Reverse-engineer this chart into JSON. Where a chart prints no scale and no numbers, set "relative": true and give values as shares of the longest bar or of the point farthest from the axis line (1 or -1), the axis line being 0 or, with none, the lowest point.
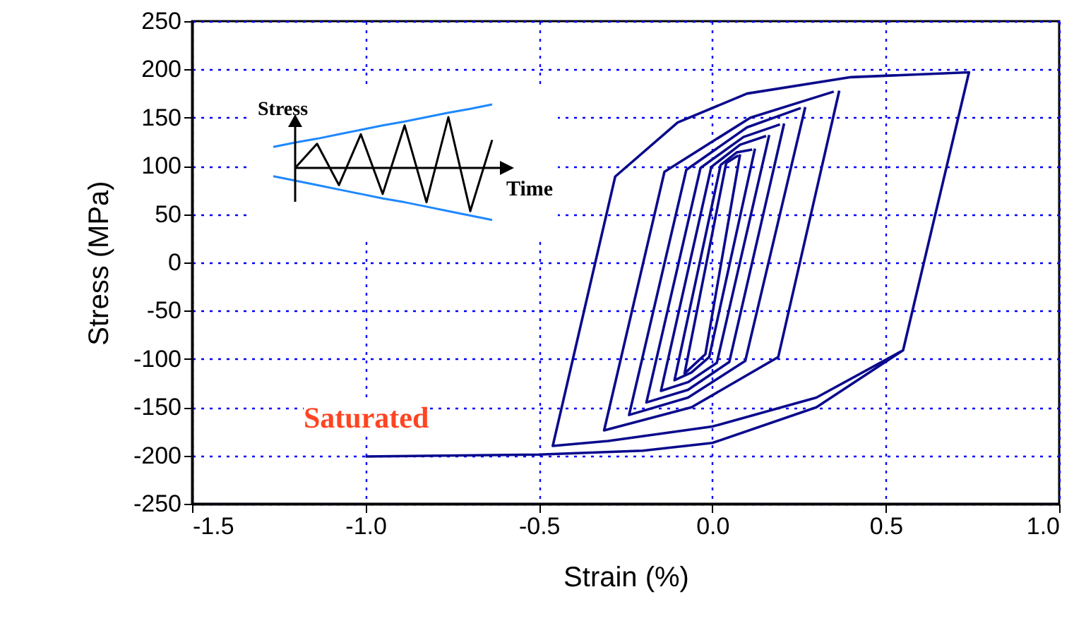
{
  "chart_data": [
    {
      "type": "line",
      "xlabel": "Strain (%)",
      "ylabel": "Stress (MPa)",
      "xlim": [
        -1.5,
        1.0
      ],
      "xticks": [
        -1.5,
        {
          "value": -1.0,
          "label": "-1.0"
        },
        -0.5,
        {
          "value": 0,
          "label": "0.0"
        },
        0.5,
        {
          "value": 1.0,
          "label": "1.0"
        }
      ],
      "ylim": [
        -250,
        250
      ],
      "yticks": [
        -250,
        -200,
        -150,
        -100,
        -50,
        0,
        50,
        100,
        150,
        200,
        250
      ],
      "grid": true,
      "annotations": [
        "Saturated"
      ],
      "series": [
        {
          "color": "#0a0a8c",
          "x": [
            -1.0,
            -0.5,
            -0.2,
            0,
            0.3,
            0.55,
            0.74,
            0.4,
            0.1,
            -0.1,
            -0.28,
            -0.46,
            -0.3,
            0,
            0.3,
            0.55
          ],
          "values": [
            -201,
            -199,
            -195,
            -187,
            -150,
            -91,
            197,
            192,
            175,
            145,
            89,
            -190,
            -185,
            -170,
            -140,
            -91
          ]
        },
        {
          "color": "#0b0a8c",
          "x": [
            0.366,
            0.19,
            -0.06,
            -0.312,
            -0.138,
            0.11,
            0.35
          ],
          "values": [
            178,
            -98,
            -150,
            -174,
            94,
            150,
            177
          ]
        },
        {
          "color": "#0a0b8c",
          "x": [
            0.268,
            0.095,
            -0.07,
            -0.24,
            -0.075,
            0.1,
            0.255
          ],
          "values": [
            161,
            -102,
            -140,
            -158,
            96,
            140,
            160
          ]
        },
        {
          "color": "#0a0a8d",
          "x": [
            0.207,
            0.049,
            -0.07,
            -0.19,
            -0.034,
            0.09,
            0.195
          ],
          "values": [
            144,
            -103,
            -132,
            -145,
            98,
            130,
            143
          ]
        },
        {
          "color": "#0b0b8c",
          "x": [
            0.164,
            0.013,
            -0.07,
            -0.148,
            -0.003,
            0.08,
            0.155
          ],
          "values": [
            132,
            -104,
            -124,
            -133,
            99,
            122,
            131
          ]
        },
        {
          "color": "#0a0b8d",
          "x": [
            0.123,
            -0.009,
            -0.06,
            -0.109,
            0.024,
            0.07,
            0.115
          ],
          "values": [
            118,
            -98,
            -114,
            -122,
            101,
            114,
            117
          ]
        },
        {
          "color": "#0b0a8d",
          "x": [
            0.08,
            -0.02,
            -0.08,
            0.04,
            0.075
          ],
          "values": [
            112,
            -95,
            -115,
            103,
            111
          ]
        }
      ]
    },
    {
      "type": "line",
      "relative": true,
      "xlabel": "Time",
      "ylabel": "Stress",
      "categories": [
        null,
        null,
        null,
        null,
        null,
        null,
        null,
        null,
        null,
        null,
        null
      ],
      "series": [
        {
          "color": "#1e88ff",
          "values": [
            0.33,
            0.4,
            0.46,
            0.53,
            0.6,
            0.67,
            0.73,
            0.8,
            0.87,
            0.93,
            1.0
          ]
        },
        {
          "color": "#1e88ff",
          "values": [
            -0.13,
            -0.2,
            -0.27,
            -0.34,
            -0.41,
            -0.48,
            -0.54,
            -0.61,
            -0.68,
            -0.75,
            -0.82
          ]
        },
        {
          "color": "#000000",
          "values": [
            null,
            0,
            0.38,
            -0.27,
            0.53,
            -0.41,
            0.67,
            -0.54,
            0.8,
            -0.68,
            0.44
          ]
        }
      ]
    }
  ]
}
